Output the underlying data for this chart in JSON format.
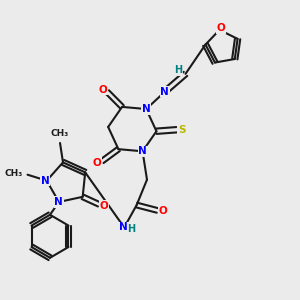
{
  "bg_color": "#ebebeb",
  "atom_colors": {
    "C": "#1a1a1a",
    "N": "#0000ff",
    "O": "#ff0000",
    "S": "#b8b800",
    "H": "#008080"
  },
  "bond_color": "#1a1a1a",
  "bond_width": 1.5,
  "figsize": [
    3.0,
    3.0
  ],
  "dpi": 100
}
